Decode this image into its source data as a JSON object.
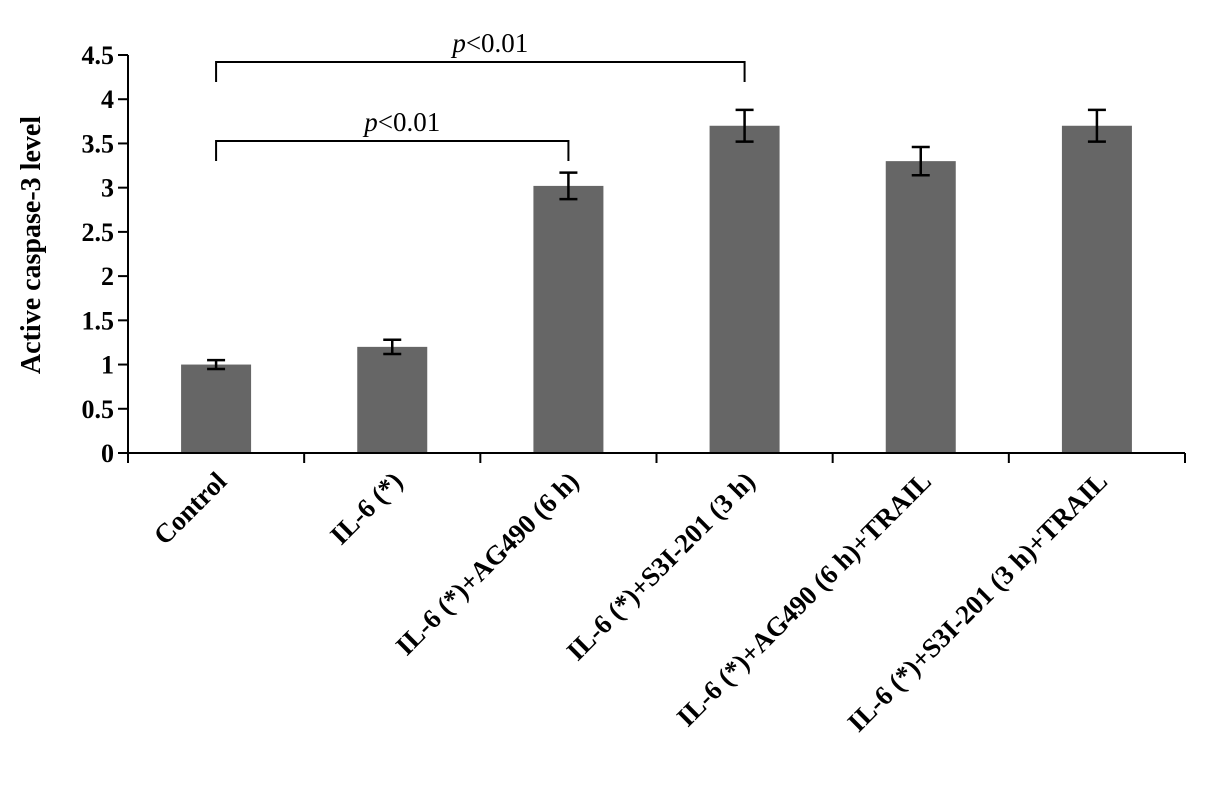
{
  "chart_data": {
    "type": "bar",
    "title": "",
    "xlabel": "",
    "ylabel": "Active caspase-3 level",
    "ylim": [
      0,
      4.5
    ],
    "yticks": [
      "0",
      "0.5",
      "1",
      "1.5",
      "2",
      "2.5",
      "3",
      "3.5",
      "4",
      "4.5"
    ],
    "categories": [
      "Control",
      "IL-6 (*)",
      "IL-6 (*)+AG490 (6 h)",
      "IL-6 (*)+S3I-201 (3 h)",
      "IL-6 (*)+AG490 (6 h)+TRAIL",
      "IL-6 (*)+S3I-201 (3 h)+TRAIL"
    ],
    "values": [
      1.0,
      1.2,
      3.02,
      3.7,
      3.3,
      3.7
    ],
    "errors": [
      0.05,
      0.08,
      0.15,
      0.18,
      0.16,
      0.18
    ],
    "bar_color": "#666666",
    "grid": false,
    "annotations": [
      {
        "from": 0,
        "to": 2,
        "label_p": "p",
        "label_rest": "<0.01"
      },
      {
        "from": 0,
        "to": 3,
        "label_p": "p",
        "label_rest": "<0.01"
      }
    ]
  }
}
